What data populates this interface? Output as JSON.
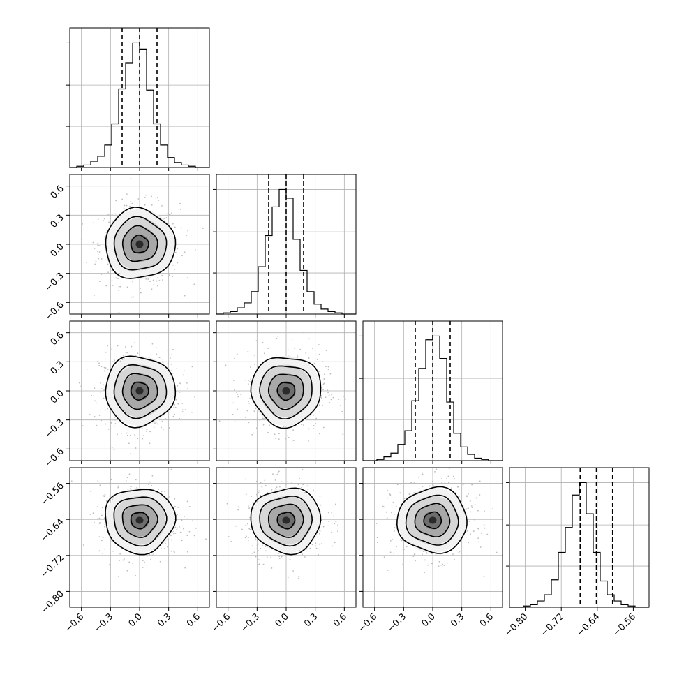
{
  "chart_data": {
    "type": "corner",
    "params": [
      {
        "range": [
          -0.72,
          0.72
        ],
        "ticks": [
          -0.6,
          -0.3,
          0.0,
          0.3,
          0.6
        ],
        "tick_labels": [
          "−0.6",
          "−0.3",
          "0.0",
          "0.3",
          "0.6"
        ],
        "mean": 0.0,
        "std": 0.18,
        "quantiles": [
          -0.18,
          0.0,
          0.18
        ]
      },
      {
        "range": [
          -0.72,
          0.72
        ],
        "ticks": [
          -0.6,
          -0.3,
          0.0,
          0.3,
          0.6
        ],
        "tick_labels": [
          "−0.6",
          "−0.3",
          "0.0",
          "0.3",
          "0.6"
        ],
        "mean": 0.0,
        "std": 0.18,
        "quantiles": [
          -0.18,
          0.0,
          0.18
        ]
      },
      {
        "range": [
          -0.72,
          0.72
        ],
        "ticks": [
          -0.6,
          -0.3,
          0.0,
          0.3,
          0.6
        ],
        "tick_labels": [
          "−0.6",
          "−0.3",
          "0.0",
          "0.3",
          "0.6"
        ],
        "mean": 0.0,
        "std": 0.18,
        "quantiles": [
          -0.18,
          0.0,
          0.18
        ]
      },
      {
        "range": [
          -0.835,
          -0.525
        ],
        "ticks": [
          -0.8,
          -0.72,
          -0.64,
          -0.56
        ],
        "tick_labels": [
          "−0.80",
          "−0.72",
          "−0.64",
          "−0.56"
        ],
        "mean": -0.642,
        "std": 0.036,
        "quantiles": [
          -0.678,
          -0.642,
          -0.606
        ]
      }
    ],
    "histograms": [
      [
        0.0,
        0.01,
        0.02,
        0.05,
        0.09,
        0.18,
        0.35,
        0.63,
        0.84,
        1.0,
        0.95,
        0.62,
        0.35,
        0.18,
        0.08,
        0.04,
        0.02,
        0.01,
        0.0,
        0.0
      ],
      [
        0.0,
        0.01,
        0.02,
        0.05,
        0.09,
        0.18,
        0.38,
        0.63,
        0.86,
        1.0,
        0.93,
        0.6,
        0.35,
        0.18,
        0.08,
        0.04,
        0.02,
        0.01,
        0.0,
        0.0
      ],
      [
        0.0,
        0.0,
        0.01,
        0.03,
        0.06,
        0.13,
        0.24,
        0.48,
        0.74,
        0.97,
        1.0,
        0.82,
        0.47,
        0.22,
        0.11,
        0.05,
        0.02,
        0.01,
        0.0,
        0.0
      ],
      [
        0.0,
        0.0,
        0.01,
        0.02,
        0.05,
        0.1,
        0.22,
        0.44,
        0.64,
        0.9,
        1.0,
        0.75,
        0.44,
        0.21,
        0.1,
        0.05,
        0.02,
        0.01,
        0.0,
        0.0
      ]
    ],
    "contour_levels_sigma": [
      0.5,
      1.0,
      1.5,
      2.0
    ],
    "grid": true,
    "quantile_style": "dashed"
  }
}
